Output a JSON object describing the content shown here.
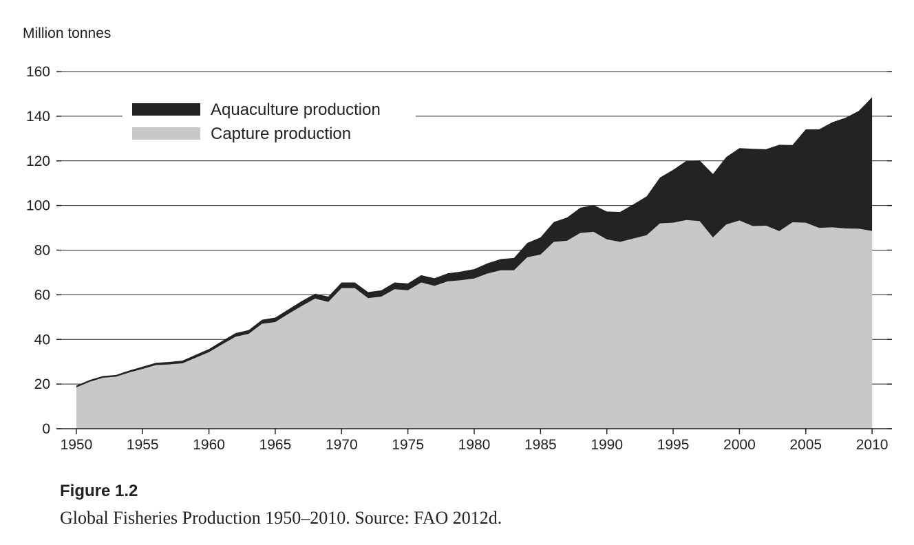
{
  "figure": {
    "label": "Figure 1.2",
    "caption": "Global Fisheries Production 1950–2010. Source: FAO 2012d."
  },
  "colors": {
    "aquaculture": "#232323",
    "capture": "#c8c8c8",
    "axis": "#222222",
    "grid": "#222222"
  },
  "chart_data": {
    "type": "area",
    "stacked": true,
    "title": "",
    "xlabel": "",
    "ylabel": "Million tonnes",
    "xlim": [
      1948.5,
      2011.5
    ],
    "ylim": [
      0,
      160
    ],
    "grid": "horizontal",
    "legend_position": "top-left",
    "x_ticks": [
      1950,
      1955,
      1960,
      1965,
      1970,
      1975,
      1980,
      1985,
      1990,
      1995,
      2000,
      2005,
      2010
    ],
    "y_ticks": [
      0,
      20,
      40,
      60,
      80,
      100,
      120,
      140,
      160
    ],
    "x": [
      1950,
      1951,
      1952,
      1953,
      1954,
      1955,
      1956,
      1957,
      1958,
      1959,
      1960,
      1961,
      1962,
      1963,
      1964,
      1965,
      1966,
      1967,
      1968,
      1969,
      1970,
      1971,
      1972,
      1973,
      1974,
      1975,
      1976,
      1977,
      1978,
      1979,
      1980,
      1981,
      1982,
      1983,
      1984,
      1985,
      1986,
      1987,
      1988,
      1989,
      1990,
      1991,
      1992,
      1993,
      1994,
      1995,
      1996,
      1997,
      1998,
      1999,
      2000,
      2001,
      2002,
      2003,
      2004,
      2005,
      2006,
      2007,
      2008,
      2009,
      2010
    ],
    "series": [
      {
        "name": "Capture production",
        "values": [
          18.5,
          21,
          22.8,
          23.3,
          25.2,
          26.8,
          28.5,
          28.8,
          29.3,
          31.8,
          34.3,
          37.8,
          41.2,
          42.5,
          47,
          47.8,
          51.5,
          55,
          58.3,
          56.8,
          63,
          63,
          58.5,
          59.2,
          62.5,
          62,
          65.5,
          64,
          66,
          66.5,
          67.3,
          69.5,
          71,
          71,
          76.8,
          78,
          83.7,
          84.2,
          87.7,
          88.2,
          84.8,
          83.7,
          85.2,
          86.7,
          92,
          92.3,
          93.5,
          93,
          85.7,
          91.5,
          93.3,
          90.8,
          91,
          88.5,
          92.5,
          92.3,
          90,
          90.2,
          89.7,
          89.6,
          88.6
        ],
        "color": "#c8c8c8"
      },
      {
        "name": "Aquaculture production",
        "values": [
          0.8,
          0.8,
          0.8,
          0.8,
          0.9,
          1,
          1,
          1.1,
          1.2,
          1.3,
          1.4,
          1.5,
          1.6,
          1.7,
          1.8,
          2,
          2,
          2.2,
          2.2,
          2.4,
          2.5,
          2.5,
          2.7,
          2.8,
          3,
          3.1,
          3.3,
          3.4,
          3.6,
          3.9,
          4.2,
          4.6,
          5,
          5.5,
          6.4,
          7.7,
          8.9,
          10.4,
          11.3,
          12,
          12.5,
          13.4,
          15.3,
          17.4,
          20.5,
          23.7,
          26.5,
          27.2,
          28.4,
          30.2,
          32.4,
          34.6,
          34.2,
          38.7,
          34.6,
          41.8,
          44.1,
          47.1,
          49.6,
          52.8,
          59.9
        ],
        "color": "#232323"
      }
    ]
  }
}
